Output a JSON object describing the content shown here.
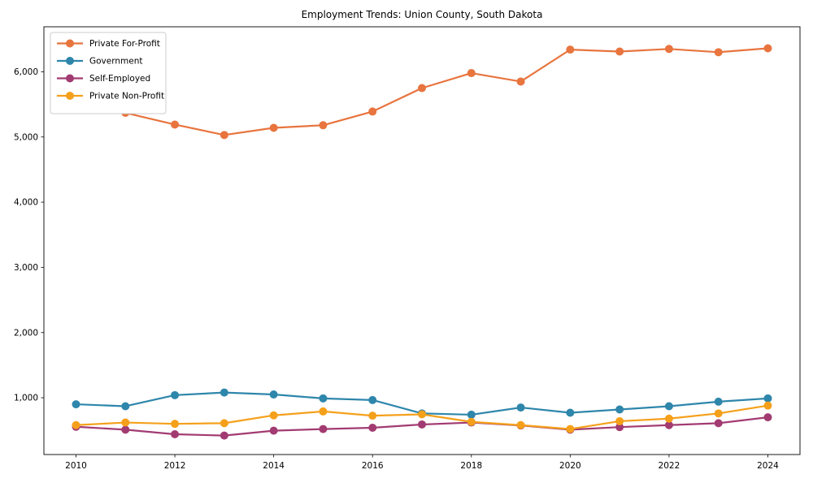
{
  "figure": {
    "background": "#ffffff",
    "title": "Employment Trends: Union County, South Dakota"
  },
  "chart_data": {
    "type": "line",
    "title": "Employment Trends: Union County, South Dakota",
    "xlabel": "",
    "ylabel": "",
    "x": [
      2010,
      2011,
      2012,
      2013,
      2014,
      2015,
      2016,
      2017,
      2018,
      2019,
      2020,
      2021,
      2022,
      2023,
      2024
    ],
    "series": [
      {
        "name": "Private For-Profit",
        "color": "#E8743E",
        "marker": "circle",
        "values": [
          5420,
          5370,
          5190,
          5030,
          5140,
          5180,
          5390,
          5750,
          5980,
          5850,
          6340,
          6310,
          6350,
          6300,
          6360
        ]
      },
      {
        "name": "Government",
        "color": "#2E86AB",
        "marker": "circle",
        "values": [
          900,
          870,
          1040,
          1080,
          1050,
          990,
          965,
          760,
          740,
          850,
          770,
          820,
          870,
          940,
          990
        ]
      },
      {
        "name": "Self-Employed",
        "color": "#A23B72",
        "marker": "circle",
        "values": [
          555,
          510,
          440,
          420,
          495,
          520,
          540,
          590,
          620,
          575,
          510,
          550,
          580,
          610,
          700
        ]
      },
      {
        "name": "Private Non-Profit",
        "color": "#F5A01B",
        "marker": "circle",
        "values": [
          580,
          620,
          600,
          610,
          730,
          790,
          725,
          745,
          630,
          580,
          520,
          640,
          680,
          760,
          880
        ]
      }
    ],
    "xticks": [
      2010,
      2012,
      2014,
      2016,
      2018,
      2020,
      2022,
      2024
    ],
    "xtick_labels": [
      "2010",
      "2012",
      "2014",
      "2016",
      "2018",
      "2020",
      "2022",
      "2024"
    ],
    "yticks": [
      1000,
      2000,
      3000,
      4000,
      5000,
      6000
    ],
    "ytick_labels": [
      "1,000",
      "2,000",
      "3,000",
      "4,000",
      "5,000",
      "6,000"
    ],
    "xlim": [
      2009.35,
      2024.65
    ],
    "ylim": [
      129,
      6690
    ],
    "grid": false,
    "legend_position": "upper-left",
    "legend_entries": [
      "Private For-Profit",
      "Government",
      "Self-Employed",
      "Private Non-Profit"
    ]
  },
  "style": {
    "spine_color": "#1a1a1a",
    "tick_color": "#1a1a1a",
    "legend_border_color": "#cccccc",
    "legend_background": "#ffffff",
    "line_width": 2.2,
    "marker_radius": 5,
    "title_font_size": 12,
    "tick_font_size": 10.5,
    "legend_font_size": 10.5
  }
}
